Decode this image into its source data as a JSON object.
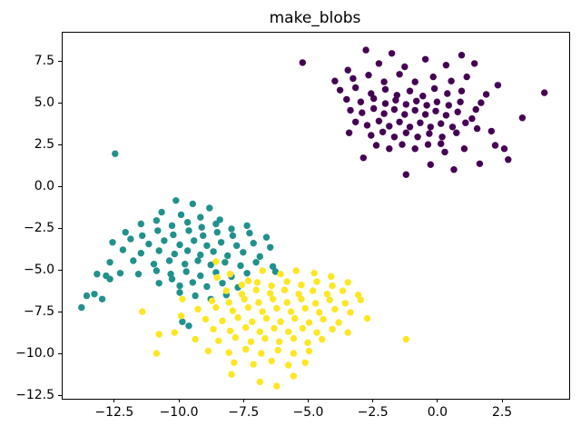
{
  "figure": {
    "title": "make_blobs",
    "background_color": "#ffffff",
    "frame_color": "#000000",
    "tick_color": "#000000"
  },
  "chart_data": {
    "type": "scatter",
    "title": "make_blobs",
    "xlabel": "",
    "ylabel": "",
    "xlim": [
      -14.53,
      5.06
    ],
    "ylim": [
      -12.66,
      9.24
    ],
    "x_tick_values": [
      -12.5,
      -10.0,
      -7.5,
      -5.0,
      -2.5,
      0.0,
      2.5
    ],
    "x_tick_labels": [
      "−12.5",
      "−10.0",
      "−7.5",
      "−5.0",
      "−2.5",
      "0.0",
      "2.5"
    ],
    "y_tick_values": [
      7.5,
      5.0,
      2.5,
      0.0,
      -2.5,
      -5.0,
      -7.5,
      -10.0,
      -12.5
    ],
    "y_tick_labels": [
      "7.5",
      "5.0",
      "2.5",
      "0.0",
      "−2.5",
      "−5.0",
      "−7.5",
      "−10.0",
      "−12.5"
    ],
    "grid": false,
    "legend": false,
    "marker_diameter_px": 7.4,
    "series": [
      {
        "name": "cluster-0-purple",
        "color": "#440154",
        "x": [
          -5.25,
          4.1,
          3.25,
          2.3,
          1.4,
          -2.9,
          -1.25,
          -0.3,
          0.25,
          0.6,
          2.2,
          2.55,
          2.7,
          1.6,
          1.85,
          1.65,
          1.45,
          1.3,
          1.5,
          2.05,
          -2.8,
          -1.8,
          -3.5,
          -2.3,
          -1.3,
          -0.5,
          0.3,
          0.9,
          -4.0,
          -3.3,
          -2.7,
          -2.1,
          -1.5,
          -0.9,
          -0.2,
          0.5,
          1.1,
          -3.8,
          -3.2,
          -2.6,
          -2.05,
          -1.6,
          -1.1,
          -0.6,
          -0.15,
          0.35,
          0.9,
          -3.55,
          -3.0,
          -2.5,
          -2.05,
          -1.65,
          -1.25,
          -0.85,
          -0.45,
          -0.05,
          0.4,
          0.85,
          -3.4,
          -2.95,
          -2.5,
          -2.1,
          -1.7,
          -1.3,
          -0.9,
          -0.5,
          -0.1,
          0.3,
          0.75,
          -3.2,
          -2.75,
          -2.3,
          -1.9,
          -1.5,
          -1.1,
          -0.7,
          -0.3,
          0.1,
          0.55,
          1.05,
          -3.45,
          -2.6,
          -2.15,
          -1.7,
          -1.25,
          -0.8,
          -0.35,
          0.15,
          0.7,
          -2.4,
          -1.9,
          -1.4,
          -0.9,
          -0.4,
          0.1,
          1.0
        ],
        "y": [
          7.45,
          5.65,
          4.15,
          6.1,
          7.4,
          1.75,
          0.75,
          1.35,
          2.1,
          1.05,
          2.5,
          2.3,
          1.65,
          1.4,
          5.55,
          5.05,
          4.65,
          4.1,
          3.5,
          3.35,
          8.2,
          8.0,
          7.0,
          7.4,
          7.2,
          7.65,
          7.3,
          7.9,
          6.35,
          6.5,
          6.7,
          6.3,
          6.75,
          6.3,
          6.6,
          6.35,
          6.6,
          5.8,
          5.95,
          5.6,
          5.85,
          5.5,
          5.75,
          5.45,
          5.9,
          5.6,
          5.75,
          5.25,
          5.1,
          5.3,
          5.0,
          5.2,
          4.95,
          5.15,
          4.9,
          5.1,
          4.9,
          5.1,
          4.6,
          4.45,
          4.7,
          4.4,
          4.65,
          4.35,
          4.6,
          4.35,
          4.55,
          4.3,
          4.5,
          3.9,
          3.7,
          3.95,
          3.65,
          3.9,
          3.6,
          3.85,
          3.6,
          3.8,
          3.6,
          3.85,
          3.25,
          3.1,
          3.3,
          3.0,
          3.25,
          3.0,
          3.2,
          3.0,
          3.25,
          2.5,
          2.3,
          2.55,
          2.3,
          2.55,
          2.6,
          2.3
        ]
      },
      {
        "name": "cluster-1-teal",
        "color": "#21918c",
        "x": [
          -12.5,
          -10.15,
          -9.5,
          -8.85,
          -10.7,
          -9.95,
          -9.2,
          -8.45,
          -11.5,
          -10.9,
          -10.3,
          -9.7,
          -9.15,
          -8.6,
          -8.0,
          -7.4,
          -12.1,
          -11.45,
          -10.85,
          -10.25,
          -9.65,
          -9.1,
          -8.55,
          -7.95,
          -7.3,
          -6.65,
          -12.6,
          -11.9,
          -11.2,
          -10.6,
          -10.0,
          -9.45,
          -8.95,
          -8.4,
          -7.8,
          -7.15,
          -6.5,
          -12.2,
          -11.5,
          -10.8,
          -10.2,
          -9.7,
          -9.2,
          -8.7,
          -8.15,
          -7.55,
          -6.9,
          -12.7,
          -11.8,
          -11.0,
          -10.4,
          -9.8,
          -9.3,
          -8.8,
          -8.25,
          -7.65,
          -7.05,
          -6.4,
          -13.2,
          -12.85,
          -12.7,
          -12.3,
          -11.6,
          -10.9,
          -10.35,
          -9.75,
          -9.2,
          -8.6,
          -8.0,
          -7.4,
          -13.6,
          -13.3,
          -13.0,
          -13.8,
          -10.8,
          -10.3,
          -10.0,
          -9.5,
          -8.95,
          -8.35,
          -7.75,
          -10.0,
          -9.4,
          -8.8,
          -8.2,
          -9.9,
          -9.65,
          -6.3
        ],
        "y": [
          2.0,
          -0.8,
          -1.0,
          -1.25,
          -1.5,
          -1.65,
          -1.8,
          -1.95,
          -2.2,
          -2.0,
          -2.3,
          -2.1,
          -2.4,
          -2.2,
          -2.5,
          -2.3,
          -2.7,
          -2.9,
          -2.6,
          -2.85,
          -2.6,
          -2.9,
          -2.7,
          -2.9,
          -2.75,
          -3.0,
          -3.3,
          -3.1,
          -3.4,
          -3.2,
          -3.45,
          -3.2,
          -3.5,
          -3.3,
          -3.5,
          -3.35,
          -3.6,
          -3.75,
          -3.95,
          -3.8,
          -4.0,
          -3.8,
          -4.05,
          -3.85,
          -4.1,
          -3.9,
          -4.15,
          -4.5,
          -4.4,
          -4.6,
          -4.4,
          -4.6,
          -4.4,
          -4.65,
          -4.5,
          -4.7,
          -4.5,
          -4.75,
          -5.2,
          -5.3,
          -5.5,
          -5.15,
          -5.2,
          -5.0,
          -5.2,
          -5.05,
          -5.3,
          -5.1,
          -5.35,
          -5.15,
          -6.5,
          -6.4,
          -6.7,
          -7.2,
          -5.75,
          -5.5,
          -5.9,
          -5.7,
          -5.95,
          -5.75,
          -6.0,
          -6.3,
          -6.5,
          -6.7,
          -6.45,
          -8.05,
          -8.3,
          -5.05
        ]
      },
      {
        "name": "cluster-2-yellow",
        "color": "#fde725",
        "x": [
          -8.6,
          -11.45,
          -10.9,
          -10.8,
          -9.9,
          -9.95,
          -10.2,
          -2.75,
          -1.25,
          -8.05,
          -8.55,
          -7.35,
          -6.8,
          -6.1,
          -5.5,
          -4.8,
          -4.15,
          -7.6,
          -7.0,
          -6.45,
          -5.85,
          -5.3,
          -4.7,
          -4.1,
          -3.5,
          -8.2,
          -7.6,
          -7.05,
          -6.5,
          -5.95,
          -5.4,
          -4.85,
          -4.3,
          -3.7,
          -3.1,
          -8.75,
          -8.1,
          -7.5,
          -6.95,
          -6.4,
          -5.85,
          -5.3,
          -4.75,
          -4.2,
          -3.6,
          -3.0,
          -9.3,
          -8.6,
          -7.95,
          -7.35,
          -6.8,
          -6.25,
          -5.7,
          -5.15,
          -4.6,
          -4.0,
          -3.4,
          -9.0,
          -8.35,
          -7.75,
          -7.2,
          -6.65,
          -6.1,
          -5.55,
          -5.0,
          -4.45,
          -3.85,
          -8.7,
          -8.05,
          -7.45,
          -6.9,
          -6.35,
          -5.8,
          -5.25,
          -4.7,
          -4.1,
          -3.5,
          -9.4,
          -8.5,
          -7.85,
          -7.25,
          -6.7,
          -6.15,
          -5.6,
          -5.05,
          -4.5,
          -8.9,
          -8.1,
          -7.45,
          -6.85,
          -6.2,
          -5.6,
          -5.0,
          -7.9,
          -7.15,
          -6.45,
          -5.8,
          -5.15,
          -8.0,
          -6.9,
          -6.25,
          -5.6
        ],
        "y": [
          -4.45,
          -7.45,
          -9.95,
          -8.8,
          -6.7,
          -7.7,
          -8.7,
          -7.85,
          -9.1,
          -5.2,
          -5.4,
          -5.6,
          -5.0,
          -5.2,
          -5.0,
          -5.15,
          -5.35,
          -5.85,
          -5.7,
          -5.9,
          -5.65,
          -5.85,
          -5.65,
          -5.9,
          -5.7,
          -6.2,
          -6.4,
          -6.15,
          -6.35,
          -6.15,
          -6.4,
          -6.2,
          -6.4,
          -6.2,
          -6.45,
          -6.8,
          -6.9,
          -6.7,
          -6.9,
          -6.7,
          -6.9,
          -6.7,
          -6.95,
          -6.75,
          -6.95,
          -6.75,
          -7.3,
          -7.2,
          -7.4,
          -7.2,
          -7.45,
          -7.25,
          -7.45,
          -7.25,
          -7.5,
          -7.3,
          -7.5,
          -7.9,
          -8.0,
          -7.8,
          -8.05,
          -7.85,
          -8.05,
          -7.85,
          -8.1,
          -7.9,
          -8.1,
          -8.5,
          -8.6,
          -8.4,
          -8.65,
          -8.45,
          -8.65,
          -8.45,
          -8.7,
          -8.5,
          -8.7,
          -9.1,
          -9.2,
          -9.0,
          -9.25,
          -9.05,
          -9.25,
          -9.05,
          -9.3,
          -9.1,
          -9.8,
          -9.9,
          -9.7,
          -9.95,
          -9.75,
          -9.95,
          -9.8,
          -10.5,
          -10.6,
          -10.4,
          -10.65,
          -10.5,
          -11.2,
          -11.65,
          -11.9,
          -11.3
        ]
      }
    ]
  }
}
